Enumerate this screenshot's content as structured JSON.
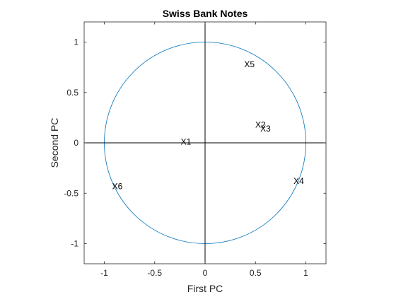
{
  "chart_data": {
    "type": "scatter",
    "title": "Swiss Bank Notes",
    "xlabel": "First PC",
    "ylabel": "Second PC",
    "xlim": [
      -1.2,
      1.2
    ],
    "ylim": [
      -1.2,
      1.2
    ],
    "x_ticks": [
      -1,
      -0.5,
      0,
      0.5,
      1
    ],
    "x_tick_labels": [
      "-1",
      "-0.5",
      "0",
      "0.5",
      "1"
    ],
    "y_ticks": [
      -1,
      -0.5,
      0,
      0.5,
      1
    ],
    "y_tick_labels": [
      "-1",
      "-0.5",
      "0",
      "0.5",
      "1"
    ],
    "grid": false,
    "unit_circle": {
      "radius": 1,
      "color": "#0072BD"
    },
    "reference_lines": {
      "x0": true,
      "y0": true,
      "color": "#000000"
    },
    "points": [
      {
        "label": "X1",
        "x": -0.19,
        "y": 0.01
      },
      {
        "label": "X2",
        "x": 0.55,
        "y": 0.18
      },
      {
        "label": "X3",
        "x": 0.6,
        "y": 0.14
      },
      {
        "label": "X4",
        "x": 0.93,
        "y": -0.38
      },
      {
        "label": "X5",
        "x": 0.44,
        "y": 0.78
      },
      {
        "label": "X6",
        "x": -0.87,
        "y": -0.43
      }
    ]
  }
}
